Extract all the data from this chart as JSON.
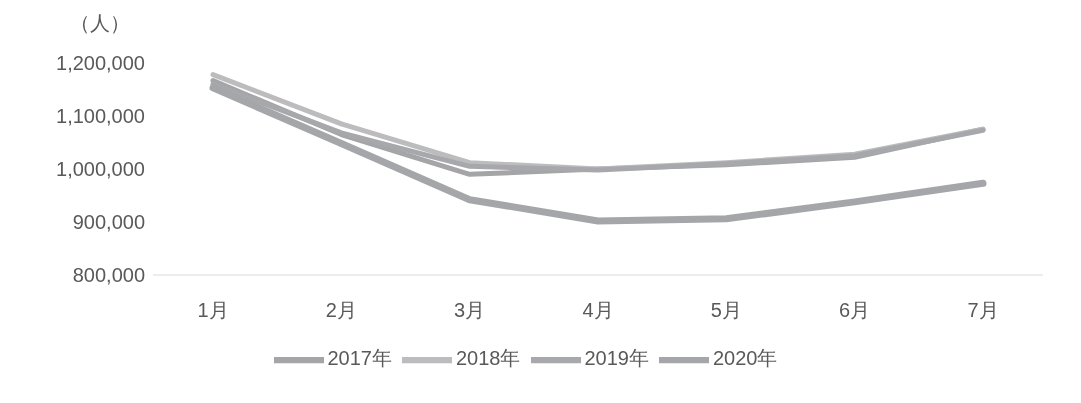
{
  "chart_data": {
    "type": "line",
    "ylabel": "（人）",
    "categories": [
      "1月",
      "2月",
      "3月",
      "4月",
      "5月",
      "6月",
      "7月"
    ],
    "series": [
      {
        "name": "2017年",
        "color": "#a5a5a8",
        "values": [
          1167000,
          1065000,
          990000,
          1000000,
          1008000,
          1022000,
          1075000
        ]
      },
      {
        "name": "2018年",
        "color": "#bcbcbe",
        "values": [
          1178000,
          1085000,
          1012000,
          1000000,
          1012000,
          1028000,
          1075000
        ]
      },
      {
        "name": "2019年",
        "color": "#a7a8ab",
        "values": [
          1160000,
          1068000,
          1005000,
          998000,
          1010000,
          1025000,
          1073000
        ]
      },
      {
        "name": "2020年",
        "color": "#a5a6a9",
        "values": [
          1153000,
          1048000,
          942000,
          902000,
          906000,
          938000,
          973000
        ]
      }
    ],
    "ylim": [
      800000,
      1200000
    ],
    "yticks": [
      {
        "value": 800000,
        "label": "800,000"
      },
      {
        "value": 900000,
        "label": "900,000"
      },
      {
        "value": 1000000,
        "label": "1,000,000"
      },
      {
        "value": 1100000,
        "label": "1,100,000"
      },
      {
        "value": 1200000,
        "label": "1,200,000"
      }
    ],
    "grid": false,
    "legend": "bottom",
    "marker": "none",
    "line_style": "solid"
  }
}
